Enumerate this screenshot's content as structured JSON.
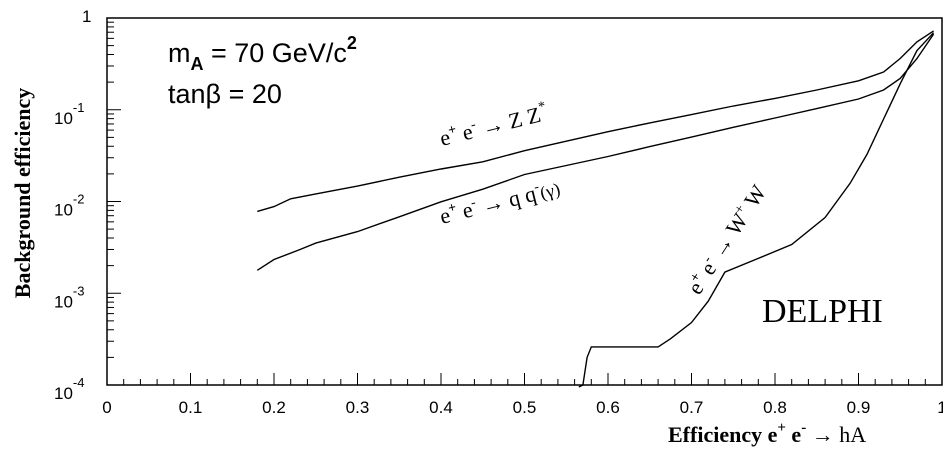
{
  "chart_data": {
    "type": "line",
    "xlabel": {
      "main": "Efficiency e",
      "sup1": "+",
      "mid": " e",
      "sup2": "-",
      "arrow": " → hA"
    },
    "ylabel": "Background efficiency",
    "xlim": [
      0,
      1
    ],
    "ylim": [
      0.0001,
      1
    ],
    "y_scale": "log",
    "grid": false,
    "legend": "none",
    "x_ticks": [
      {
        "value": 0,
        "label": "0"
      },
      {
        "value": 0.1,
        "label": "0.1"
      },
      {
        "value": 0.2,
        "label": "0.2"
      },
      {
        "value": 0.3,
        "label": "0.3"
      },
      {
        "value": 0.4,
        "label": "0.4"
      },
      {
        "value": 0.5,
        "label": "0.5"
      },
      {
        "value": 0.6,
        "label": "0.6"
      },
      {
        "value": 0.7,
        "label": "0.7"
      },
      {
        "value": 0.8,
        "label": "0.8"
      },
      {
        "value": 0.9,
        "label": "0.9"
      },
      {
        "value": 1.0,
        "label": "1"
      }
    ],
    "y_ticks": [
      {
        "value": 1,
        "base": "1",
        "exp": ""
      },
      {
        "value": 0.1,
        "base": "10",
        "exp": "-1"
      },
      {
        "value": 0.01,
        "base": "10",
        "exp": "-2"
      },
      {
        "value": 0.001,
        "base": "10",
        "exp": "-3"
      },
      {
        "value": 0.0001,
        "base": "10",
        "exp": "-4"
      }
    ],
    "series": [
      {
        "id": "zz",
        "x": [
          0.18,
          0.2,
          0.22,
          0.25,
          0.3,
          0.35,
          0.4,
          0.45,
          0.5,
          0.55,
          0.6,
          0.65,
          0.7,
          0.75,
          0.8,
          0.85,
          0.9,
          0.93,
          0.95,
          0.97,
          0.99
        ],
        "y": [
          0.0078,
          0.0088,
          0.0107,
          0.0121,
          0.0147,
          0.0184,
          0.0226,
          0.0271,
          0.0358,
          0.0454,
          0.0576,
          0.0719,
          0.0885,
          0.11,
          0.133,
          0.164,
          0.207,
          0.258,
          0.363,
          0.549,
          0.724
        ]
      },
      {
        "id": "qq",
        "x": [
          0.18,
          0.2,
          0.23,
          0.25,
          0.3,
          0.35,
          0.4,
          0.45,
          0.5,
          0.55,
          0.6,
          0.65,
          0.7,
          0.75,
          0.8,
          0.85,
          0.9,
          0.93,
          0.95,
          0.97,
          0.99
        ],
        "y": [
          0.00178,
          0.00233,
          0.00297,
          0.00352,
          0.0047,
          0.00682,
          0.00993,
          0.0136,
          0.0197,
          0.0247,
          0.0309,
          0.0397,
          0.0504,
          0.0644,
          0.0813,
          0.103,
          0.131,
          0.164,
          0.22,
          0.361,
          0.668
        ]
      },
      {
        "id": "ww",
        "x": [
          0.565,
          0.57,
          0.575,
          0.58,
          0.62,
          0.66,
          0.675,
          0.7,
          0.72,
          0.74,
          0.78,
          0.82,
          0.86,
          0.89,
          0.91,
          0.93,
          0.95,
          0.97,
          0.99
        ],
        "y": [
          5e-05,
          0.0001,
          0.0002,
          0.00026,
          0.00026,
          0.00026,
          0.00032,
          0.00048,
          0.00082,
          0.0017,
          0.0024,
          0.0034,
          0.0067,
          0.0158,
          0.0325,
          0.0793,
          0.193,
          0.44,
          0.692
        ]
      }
    ],
    "annotations": {
      "ma": {
        "base": "m",
        "sub": "A",
        "rest": " = 70 GeV/c",
        "sup": "2"
      },
      "tanb": "tanβ  =  20",
      "zz_label": {
        "e1": "e",
        "s1": "+",
        "e2": " e",
        "s2": "-",
        "arrow": " → Z Z",
        "s3": "*"
      },
      "qq_label": {
        "e1": "e",
        "s1": "+",
        "e2": " e",
        "s2": "-",
        "arrow": " → q q",
        "s3": "-",
        "tail": "(γ)"
      },
      "ww_label": {
        "e1": "e",
        "s1": "+",
        "e2": " e",
        "s2": "-",
        "arrow": " → W",
        "s3": "+",
        "tail": " W"
      },
      "experiment": "DELPHI"
    }
  }
}
